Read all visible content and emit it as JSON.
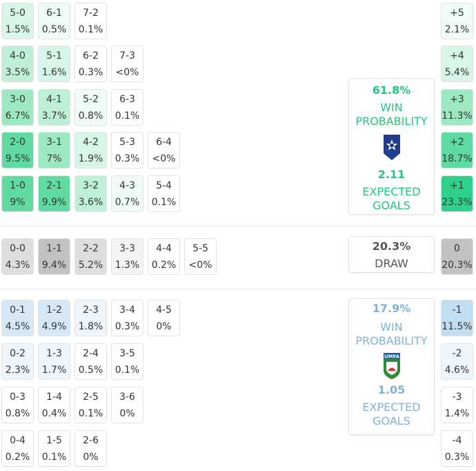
{
  "colors": {
    "home_accent": "#1ec87d",
    "away_accent": "#7fb2d8",
    "draw_text": "#555555",
    "home_shades": [
      "#ffffff",
      "#effbf5",
      "#d8f6e8",
      "#bdf0d6",
      "#9ce8c1",
      "#5fdaa0",
      "#2fd089"
    ],
    "away_shades": [
      "#ffffff",
      "#eef5fb",
      "#d6e8f6",
      "#c1ddf2"
    ],
    "draw_shades": [
      "#ffffff",
      "#f3f3f3",
      "#dedede",
      "#c2c2c2"
    ]
  },
  "home_scores": [
    {
      "score": "5-0",
      "prob": "1.5%",
      "shade": 2
    },
    {
      "score": "6-1",
      "prob": "0.5%",
      "shade": 1
    },
    {
      "score": "7-2",
      "prob": "0.1%",
      "shade": 0
    },
    {
      "score": "4-0",
      "prob": "3.5%",
      "shade": 3
    },
    {
      "score": "5-1",
      "prob": "1.6%",
      "shade": 2
    },
    {
      "score": "6-2",
      "prob": "0.3%",
      "shade": 0
    },
    {
      "score": "7-3",
      "prob": "<0%",
      "shade": 0
    },
    {
      "score": "3-0",
      "prob": "6.7%",
      "shade": 4
    },
    {
      "score": "4-1",
      "prob": "3.7%",
      "shade": 3
    },
    {
      "score": "5-2",
      "prob": "0.8%",
      "shade": 1
    },
    {
      "score": "6-3",
      "prob": "0.1%",
      "shade": 0
    },
    {
      "score": "2-0",
      "prob": "9.5%",
      "shade": 5
    },
    {
      "score": "3-1",
      "prob": "7%",
      "shade": 4
    },
    {
      "score": "4-2",
      "prob": "1.9%",
      "shade": 2
    },
    {
      "score": "5-3",
      "prob": "0.3%",
      "shade": 0
    },
    {
      "score": "6-4",
      "prob": "<0%",
      "shade": 0
    },
    {
      "score": "1-0",
      "prob": "9%",
      "shade": 5
    },
    {
      "score": "2-1",
      "prob": "9.9%",
      "shade": 5
    },
    {
      "score": "3-2",
      "prob": "3.6%",
      "shade": 3
    },
    {
      "score": "4-3",
      "prob": "0.7%",
      "shade": 1
    },
    {
      "score": "5-4",
      "prob": "0.1%",
      "shade": 0
    }
  ],
  "draw_scores": [
    {
      "score": "0-0",
      "prob": "4.3%",
      "shade": 2
    },
    {
      "score": "1-1",
      "prob": "9.4%",
      "shade": 3
    },
    {
      "score": "2-2",
      "prob": "5.2%",
      "shade": 2
    },
    {
      "score": "3-3",
      "prob": "1.3%",
      "shade": 1
    },
    {
      "score": "4-4",
      "prob": "0.2%",
      "shade": 0
    },
    {
      "score": "5-5",
      "prob": "<0%",
      "shade": 0
    }
  ],
  "away_scores": [
    {
      "score": "0-1",
      "prob": "4.5%",
      "shade": 2
    },
    {
      "score": "1-2",
      "prob": "4.9%",
      "shade": 2
    },
    {
      "score": "2-3",
      "prob": "1.8%",
      "shade": 1
    },
    {
      "score": "3-4",
      "prob": "0.3%",
      "shade": 0
    },
    {
      "score": "4-5",
      "prob": "0%",
      "shade": 0
    },
    {
      "score": "0-2",
      "prob": "2.3%",
      "shade": 1
    },
    {
      "score": "1-3",
      "prob": "1.7%",
      "shade": 1
    },
    {
      "score": "2-4",
      "prob": "0.5%",
      "shade": 0
    },
    {
      "score": "3-5",
      "prob": "0.1%",
      "shade": 0
    },
    {
      "score": "0-3",
      "prob": "0.8%",
      "shade": 0
    },
    {
      "score": "1-4",
      "prob": "0.4%",
      "shade": 0
    },
    {
      "score": "2-5",
      "prob": "0.1%",
      "shade": 0
    },
    {
      "score": "3-6",
      "prob": "0%",
      "shade": 0
    },
    {
      "score": "0-4",
      "prob": "0.2%",
      "shade": 0
    },
    {
      "score": "1-5",
      "prob": "0.1%",
      "shade": 0
    },
    {
      "score": "2-6",
      "prob": "0%",
      "shade": 0
    }
  ],
  "margins_home": [
    {
      "label": "+5",
      "prob": "2.1%",
      "shade": 1
    },
    {
      "label": "+4",
      "prob": "5.4%",
      "shade": 2
    },
    {
      "label": "+3",
      "prob": "11.3%",
      "shade": 4
    },
    {
      "label": "+2",
      "prob": "18.7%",
      "shade": 5
    },
    {
      "label": "+1",
      "prob": "23.3%",
      "shade": 6
    }
  ],
  "margin_draw": {
    "label": "0",
    "prob": "20.3%",
    "shade": 3
  },
  "margins_away": [
    {
      "label": "-1",
      "prob": "11.5%",
      "shade": 3
    },
    {
      "label": "-2",
      "prob": "4.6%",
      "shade": 1
    },
    {
      "label": "-3",
      "prob": "1.4%",
      "shade": 0
    },
    {
      "label": "-4",
      "prob": "0.3%",
      "shade": 0
    }
  ],
  "home_card": {
    "win_pct": "61.8%",
    "win_label_1": "WIN",
    "win_label_2": "PROBABILITY",
    "xg": "2.11",
    "xg_label_1": "EXPECTED",
    "xg_label_2": "GOALS",
    "crest_icon": "star-crest-icon"
  },
  "draw_card": {
    "pct": "20.3%",
    "label": "DRAW"
  },
  "away_card": {
    "win_pct": "17.9%",
    "win_label_1": "WIN",
    "win_label_2": "PROBABILITY",
    "xg": "1.05",
    "xg_label_1": "EXPECTED",
    "xg_label_2": "GOALS",
    "crest_icon": "umfa-crest-icon",
    "crest_text": "UMFA"
  }
}
